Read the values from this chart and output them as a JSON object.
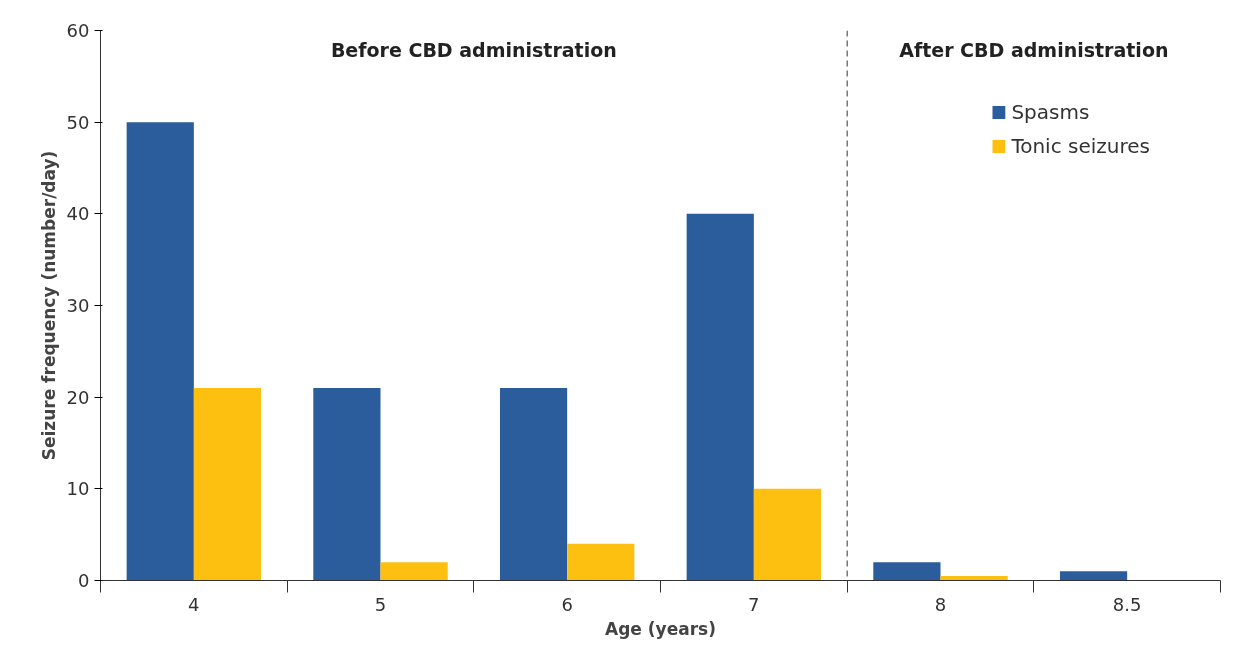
{
  "chart_data": {
    "type": "bar",
    "xlabel": "Age (years)",
    "ylabel": "Seizure frequency (number/day)",
    "categories": [
      "4",
      "5",
      "6",
      "7",
      "8",
      "8.5"
    ],
    "series": [
      {
        "name": "Spasms",
        "color": "#2b5c9c",
        "values": [
          50,
          21,
          21,
          40,
          2,
          1
        ]
      },
      {
        "name": "Tonic seizures",
        "color": "#fdc010",
        "values": [
          21,
          2,
          4,
          10,
          0.5,
          0
        ]
      }
    ],
    "ylim": [
      0,
      60
    ],
    "yticks": [
      0,
      10,
      20,
      30,
      40,
      50,
      60
    ],
    "grid": false,
    "legend": "top right",
    "annotations": [
      "Before CBD administration",
      "After CBD administration"
    ]
  }
}
